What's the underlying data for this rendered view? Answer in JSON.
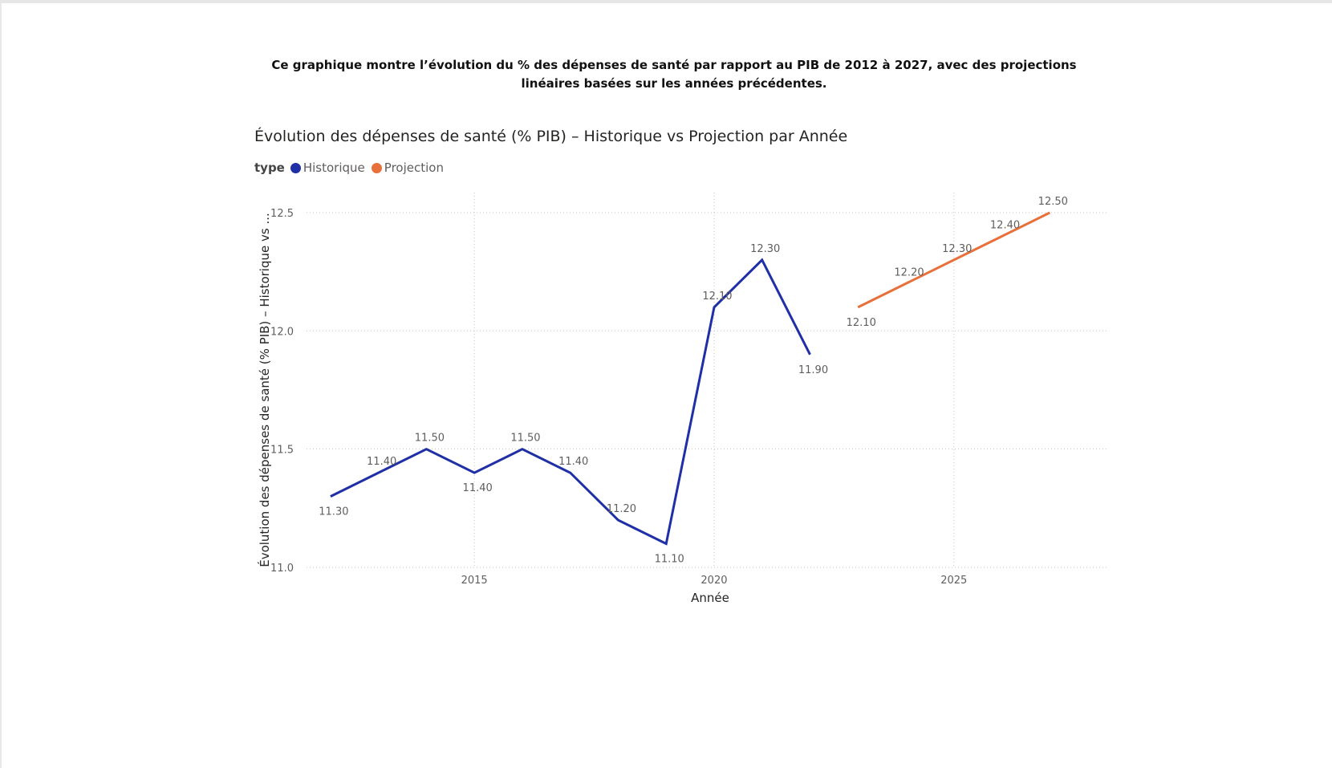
{
  "description": "Ce graphique montre l’évolution du % des dépenses de santé par rapport au PIB de 2012 à 2027, avec des projections linéaires basées sur les années précédentes.",
  "chart_data": {
    "type": "line",
    "title": "Évolution des dépenses de santé (% PIB) – Historique vs Projection par Année",
    "xlabel": "Année",
    "ylabel": "Évolution des dépenses de santé (% PIB) – Historique vs ...",
    "legend_title": "type",
    "legend_position": "top-left",
    "xlim": [
      2011.5,
      2028.2
    ],
    "ylim": [
      11.0,
      12.5
    ],
    "x_ticks": [
      2015,
      2020,
      2025
    ],
    "y_ticks": [
      11.0,
      11.5,
      12.0,
      12.5
    ],
    "grid": true,
    "series": [
      {
        "name": "Historique",
        "color": "#1f2fa6",
        "x": [
          2012,
          2013,
          2014,
          2015,
          2016,
          2017,
          2018,
          2019,
          2020,
          2021,
          2022
        ],
        "y": [
          11.3,
          11.4,
          11.5,
          11.4,
          11.5,
          11.4,
          11.2,
          11.1,
          12.1,
          12.3,
          11.9
        ],
        "labels": [
          "11.30",
          "11.40",
          "11.50",
          "11.40",
          "11.50",
          "11.40",
          "11.20",
          "11.10",
          "12.10",
          "12.30",
          "11.90"
        ]
      },
      {
        "name": "Projection",
        "color": "#e8703a",
        "x": [
          2023,
          2024,
          2025,
          2026,
          2027
        ],
        "y": [
          12.1,
          12.2,
          12.3,
          12.4,
          12.5
        ],
        "labels": [
          "12.10",
          "12.20",
          "12.30",
          "12.40",
          "12.50"
        ]
      }
    ]
  }
}
